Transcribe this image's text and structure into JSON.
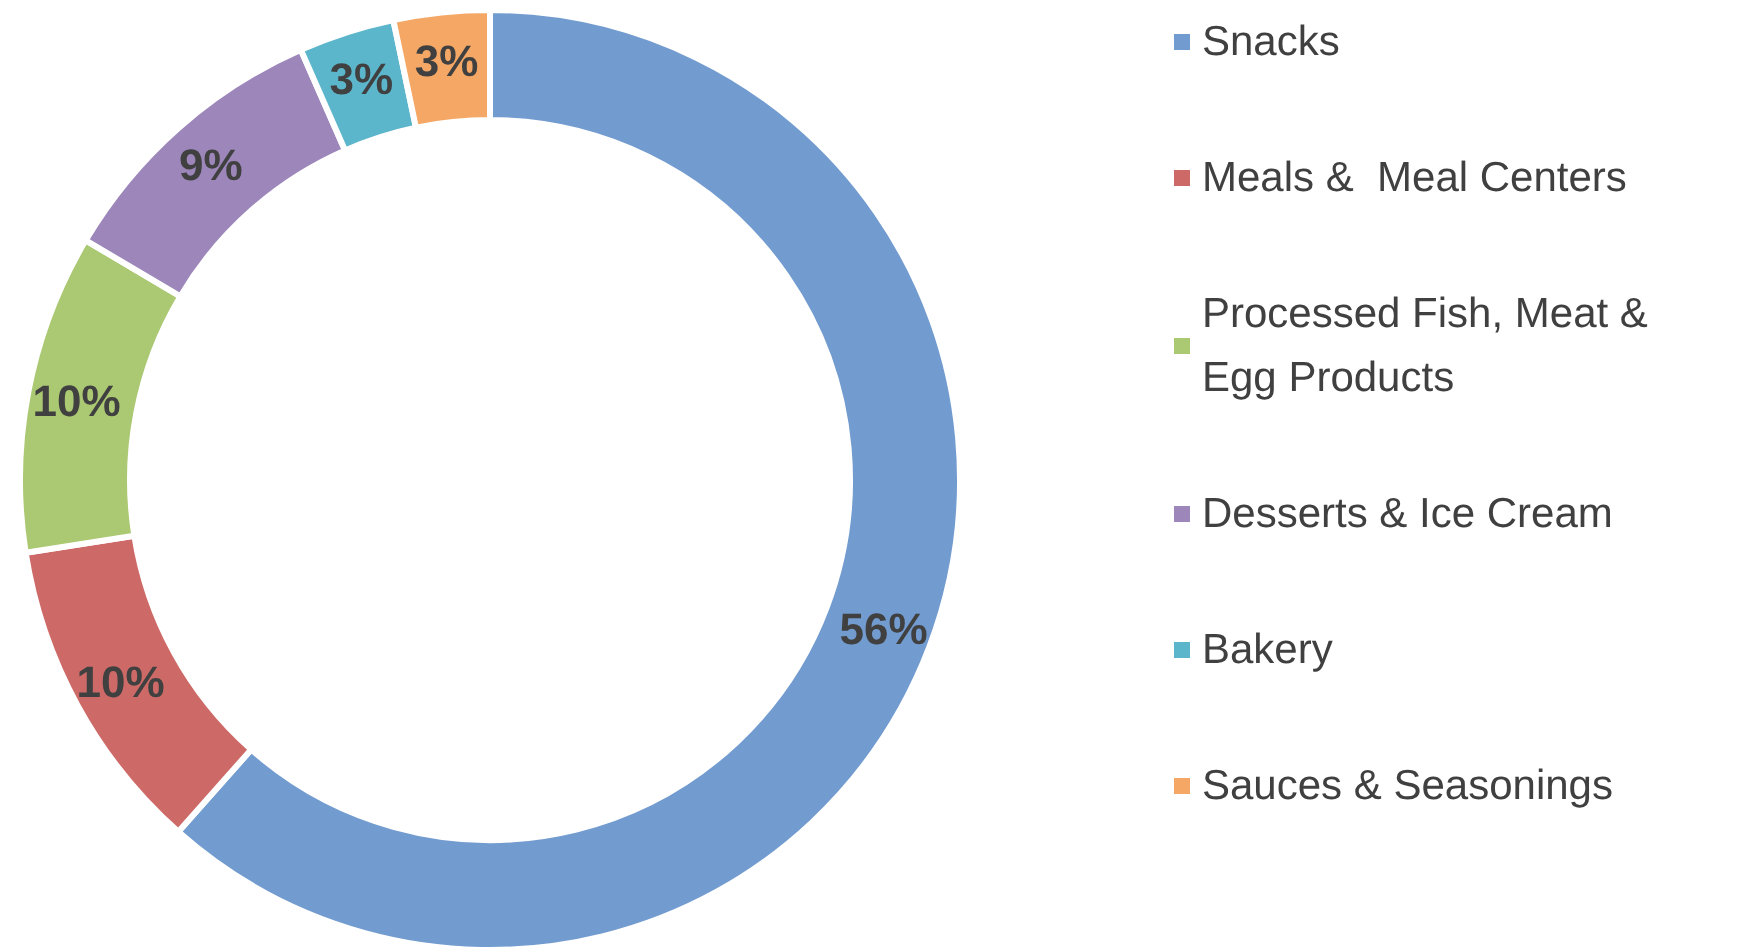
{
  "chart_data": {
    "type": "donut",
    "categories": [
      "Snacks",
      "Meals &  Meal Centers",
      "Processed Fish, Meat & Egg Products",
      "Desserts & Ice Cream",
      "Bakery",
      "Sauces & Seasonings"
    ],
    "values": [
      56,
      10,
      10,
      9,
      3,
      3
    ],
    "value_labels": [
      "56%",
      "10%",
      "10%",
      "9%",
      "3%",
      "3%"
    ],
    "colors": [
      "#729bcf",
      "#cd6a67",
      "#abc872",
      "#9c86ba",
      "#5cb6cb",
      "#f5a765"
    ],
    "legend": "right"
  }
}
